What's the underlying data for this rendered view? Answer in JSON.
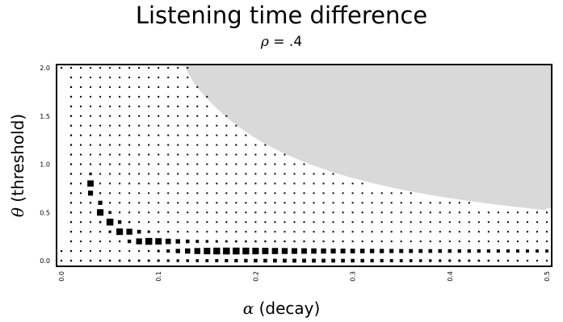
{
  "chart_data": {
    "type": "heatmap",
    "title": "Listening time difference",
    "subtitle": {
      "symbol": "ρ",
      "text": "= .4"
    },
    "xlabel": {
      "symbol": "α",
      "text": "(decay)"
    },
    "ylabel": {
      "symbol": "θ",
      "text": "(threshold)"
    },
    "xlim": [
      0.0,
      0.5
    ],
    "ylim": [
      0.0,
      2.0
    ],
    "x_ticks": [
      "0.0",
      "0.1",
      "0.2",
      "0.3",
      "0.4",
      "0.5"
    ],
    "y_ticks": [
      "0.0",
      "0.5",
      "1.0",
      "1.5",
      "2.0"
    ],
    "x_values": [
      0.0,
      0.01,
      0.02,
      0.03,
      0.04,
      0.05,
      0.06,
      0.07,
      0.08,
      0.09,
      0.1,
      0.11,
      0.12,
      0.13,
      0.14,
      0.15,
      0.16,
      0.17,
      0.18,
      0.19,
      0.2,
      0.21,
      0.22,
      0.23,
      0.24,
      0.25,
      0.26,
      0.27,
      0.28,
      0.29,
      0.3,
      0.31,
      0.32,
      0.33,
      0.34,
      0.35,
      0.36,
      0.37,
      0.38,
      0.39,
      0.4,
      0.41,
      0.42,
      0.43,
      0.44,
      0.45,
      0.46,
      0.47,
      0.48,
      0.49,
      0.5
    ],
    "y_values": [
      0.0,
      0.1,
      0.2,
      0.3,
      0.4,
      0.5,
      0.6,
      0.7,
      0.8,
      0.9,
      1.0,
      1.1,
      1.2,
      1.3,
      1.4,
      1.5,
      1.6,
      1.7,
      1.8,
      1.9,
      2.0
    ],
    "marker": "square, size proportional to value",
    "empty_region_color": "#d9d9d9",
    "marker_color": "#000000"
  }
}
